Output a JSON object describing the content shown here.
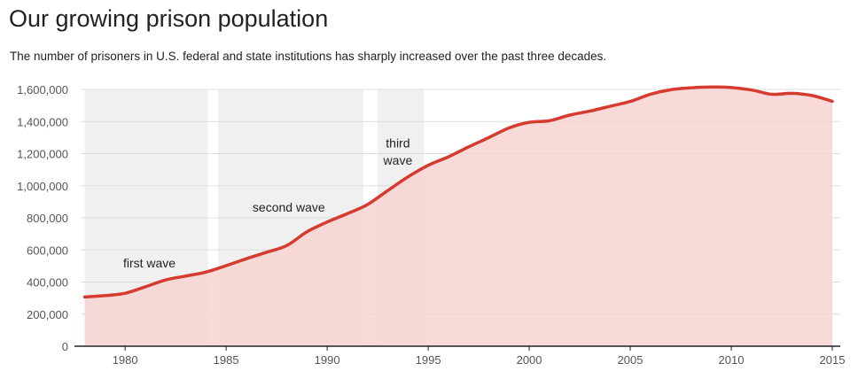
{
  "chart_data": {
    "type": "area",
    "title": "Our growing prison population",
    "subtitle": "The number of prisoners in U.S. federal and state institutions has sharply increased over the past three decades.",
    "xlabel": "",
    "ylabel": "",
    "xlim": [
      1977.8,
      2015
    ],
    "ylim": [
      0,
      1600000
    ],
    "x_ticks": [
      1980,
      1985,
      1990,
      1995,
      2000,
      2005,
      2010,
      2015
    ],
    "x_tick_labels": [
      "1980",
      "1985",
      "1990",
      "1995",
      "2000",
      "2005",
      "2010",
      "2015"
    ],
    "y_ticks": [
      0,
      200000,
      400000,
      600000,
      800000,
      1000000,
      1200000,
      1400000,
      1600000
    ],
    "y_tick_labels": [
      "0",
      "200,000",
      "400,000",
      "600,000",
      "800,000",
      "1,000,000",
      "1,200,000",
      "1,400,000",
      "1,600,000"
    ],
    "grid": true,
    "colors": {
      "line": "#d63b2f",
      "area": "#f7d3d2",
      "band": "#f0f0f0",
      "grid": "#dddddd"
    },
    "bands": [
      {
        "label": "first wave",
        "x_start": 1978.0,
        "x_end": 1984.1
      },
      {
        "label": "second wave",
        "x_start": 1984.6,
        "x_end": 1991.8
      },
      {
        "label": "third wave",
        "x_start": 1992.5,
        "x_end": 1994.8
      }
    ],
    "annotations": [
      {
        "text": "first wave",
        "x": 1981.2,
        "y": 490000
      },
      {
        "text": "second wave",
        "x": 1988.1,
        "y": 840000
      },
      {
        "text": "third",
        "x": 1993.5,
        "y": 1240000
      },
      {
        "text": "wave",
        "x": 1993.5,
        "y": 1130000
      }
    ],
    "series": [
      {
        "x": [
          1978,
          1979,
          1980,
          1981,
          1982,
          1983,
          1984,
          1985,
          1986,
          1987,
          1988,
          1989,
          1990,
          1991,
          1992,
          1993,
          1994,
          1995,
          1996,
          1997,
          1998,
          1999,
          2000,
          2001,
          2002,
          2003,
          2004,
          2005,
          2006,
          2007,
          2008,
          2009,
          2010,
          2011,
          2012,
          2013,
          2014,
          2015
        ],
        "values": [
          307000,
          315000,
          330000,
          370000,
          413000,
          437000,
          462000,
          502000,
          545000,
          585000,
          627000,
          713000,
          774000,
          826000,
          883000,
          970000,
          1055000,
          1127000,
          1180000,
          1242000,
          1300000,
          1360000,
          1395000,
          1405000,
          1440000,
          1465000,
          1495000,
          1525000,
          1570000,
          1598000,
          1610000,
          1615000,
          1612000,
          1597000,
          1570000,
          1576000,
          1562000,
          1526000
        ]
      }
    ]
  }
}
